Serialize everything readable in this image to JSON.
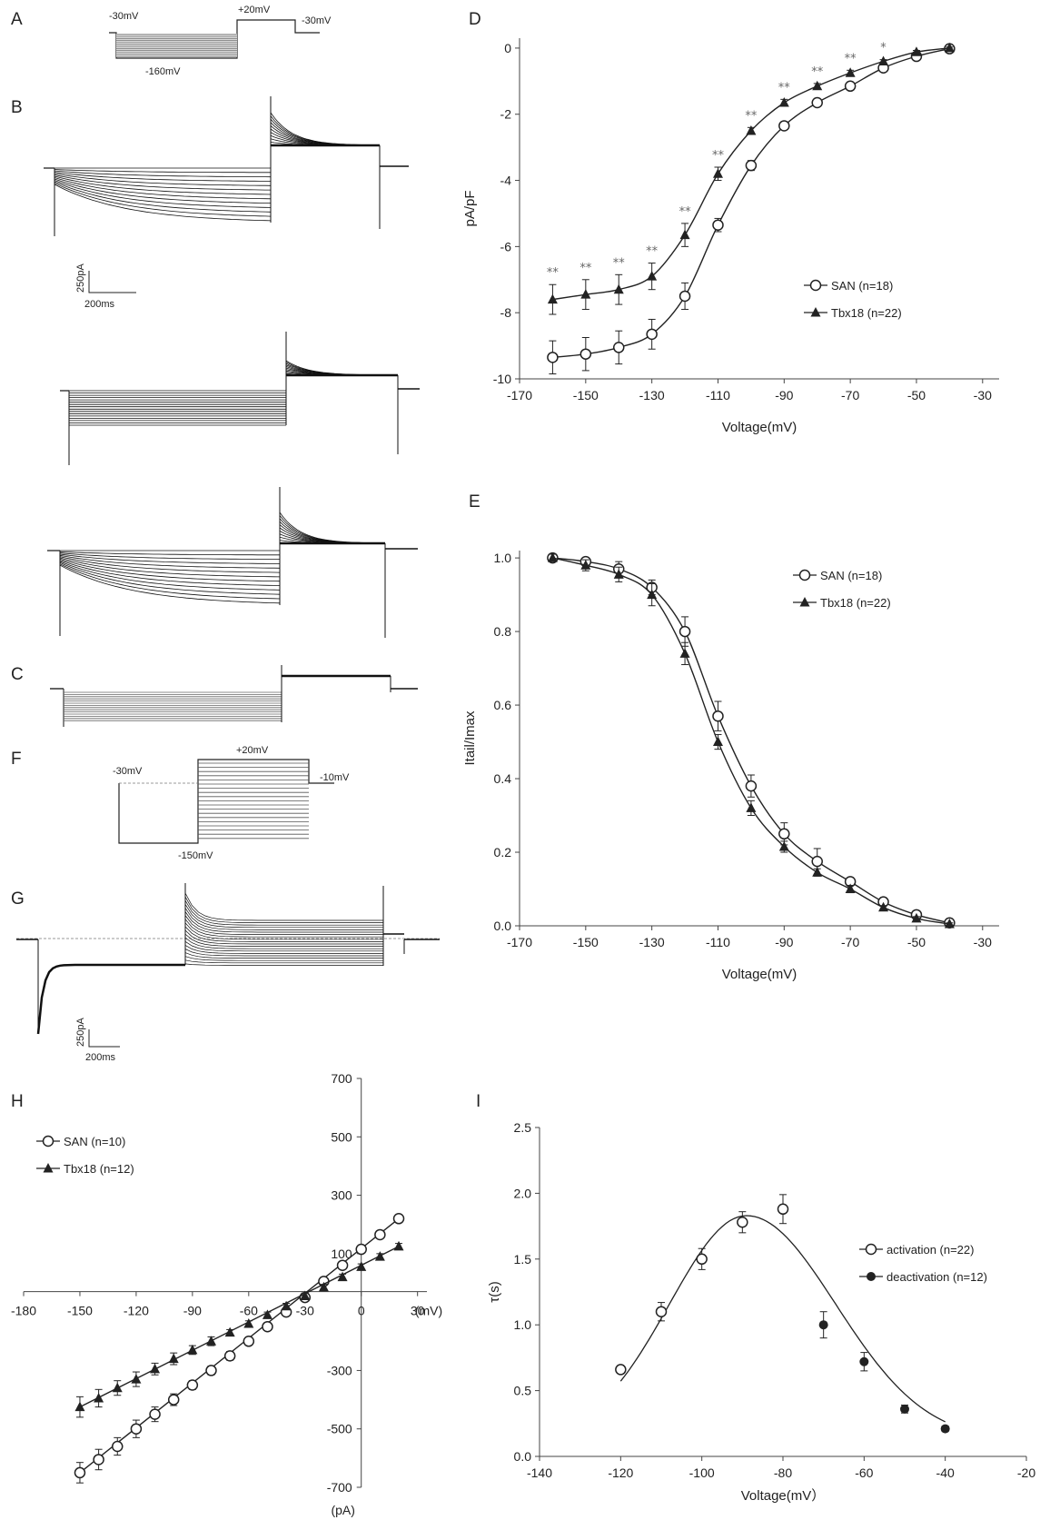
{
  "panel_labels": {
    "A": "A",
    "B": "B",
    "C": "C",
    "D": "D",
    "E": "E",
    "F": "F",
    "G": "G",
    "H": "H",
    "I": "I"
  },
  "protocol_A": {
    "hold": "-30mV",
    "step": "-160mV",
    "tail": "+20mV",
    "return": "-30mV"
  },
  "protocol_F": {
    "hold": "-30mV",
    "pre": "-150mV",
    "step": "+20mV",
    "return": "-10mV"
  },
  "scalebars": {
    "B_current": "250pA",
    "B_time": "200ms",
    "G_current": "250pA",
    "G_time": "200ms"
  },
  "colors": {
    "series_line": "#222222",
    "trace": "#111111",
    "stars": "#666666"
  },
  "chart_data": [
    {
      "id": "D",
      "type": "line",
      "xlabel": "Voltage(mV)",
      "ylabel": "pA/pF",
      "xlim": [
        -170,
        -25
      ],
      "ylim": [
        -10,
        0.3
      ],
      "xticks": [
        -170,
        -150,
        -130,
        -110,
        -90,
        -70,
        -50,
        -30
      ],
      "yticks": [
        0,
        -2,
        -4,
        -6,
        -8,
        -10
      ],
      "legend_position": "right",
      "series": [
        {
          "name": "SAN (n=18)",
          "marker": "open-circle",
          "x": [
            -160,
            -150,
            -140,
            -130,
            -120,
            -110,
            -100,
            -90,
            -80,
            -70,
            -60,
            -50,
            -40
          ],
          "y": [
            -9.35,
            -9.25,
            -9.05,
            -8.65,
            -7.5,
            -5.35,
            -3.55,
            -2.35,
            -1.65,
            -1.15,
            -0.6,
            -0.25,
            -0.02
          ],
          "err": [
            0.5,
            0.5,
            0.5,
            0.45,
            0.4,
            0.2,
            0.15,
            0.1,
            0.08,
            0.08,
            0.05,
            0.05,
            0.03
          ]
        },
        {
          "name": "Tbx18 (n=22)",
          "marker": "filled-triangle",
          "x": [
            -160,
            -150,
            -140,
            -130,
            -120,
            -110,
            -100,
            -90,
            -80,
            -70,
            -60,
            -50,
            -40
          ],
          "y": [
            -7.6,
            -7.45,
            -7.3,
            -6.9,
            -5.65,
            -3.8,
            -2.5,
            -1.65,
            -1.15,
            -0.75,
            -0.4,
            -0.12,
            0
          ],
          "err": [
            0.45,
            0.45,
            0.45,
            0.4,
            0.35,
            0.2,
            0.1,
            0.1,
            0.08,
            0.08,
            0.05,
            0.05,
            0.03
          ]
        }
      ],
      "annotations": [
        {
          "x": -160,
          "text": "**"
        },
        {
          "x": -150,
          "text": "**"
        },
        {
          "x": -140,
          "text": "**"
        },
        {
          "x": -130,
          "text": "**"
        },
        {
          "x": -120,
          "text": "**"
        },
        {
          "x": -110,
          "text": "**"
        },
        {
          "x": -100,
          "text": "**"
        },
        {
          "x": -90,
          "text": "**"
        },
        {
          "x": -80,
          "text": "**"
        },
        {
          "x": -70,
          "text": "**"
        },
        {
          "x": -60,
          "text": "*"
        }
      ]
    },
    {
      "id": "E",
      "type": "line",
      "xlabel": "Voltage(mV)",
      "ylabel": "Itail/Imax",
      "xlim": [
        -170,
        -25
      ],
      "ylim": [
        0,
        1.02
      ],
      "xticks": [
        -170,
        -150,
        -130,
        -110,
        -90,
        -70,
        -50,
        -30
      ],
      "yticks": [
        0.0,
        0.2,
        0.4,
        0.6,
        0.8,
        1.0
      ],
      "legend_position": "top-right",
      "series": [
        {
          "name": "SAN (n=18)",
          "marker": "open-circle",
          "x": [
            -160,
            -150,
            -140,
            -130,
            -120,
            -110,
            -100,
            -90,
            -80,
            -70,
            -60,
            -50,
            -40
          ],
          "y": [
            1.0,
            0.99,
            0.97,
            0.92,
            0.8,
            0.57,
            0.38,
            0.25,
            0.175,
            0.12,
            0.065,
            0.03,
            0.008
          ],
          "err": [
            0.01,
            0.01,
            0.02,
            0.02,
            0.04,
            0.04,
            0.03,
            0.03,
            0.035,
            0.01,
            0.01,
            0.005,
            0.005
          ]
        },
        {
          "name": "Tbx18 (n=22)",
          "marker": "filled-triangle",
          "x": [
            -160,
            -150,
            -140,
            -130,
            -120,
            -110,
            -100,
            -90,
            -80,
            -70,
            -60,
            -50,
            -40
          ],
          "y": [
            1.0,
            0.98,
            0.955,
            0.9,
            0.74,
            0.5,
            0.32,
            0.215,
            0.145,
            0.1,
            0.05,
            0.02,
            0.005
          ],
          "err": [
            0.01,
            0.015,
            0.02,
            0.03,
            0.03,
            0.02,
            0.02,
            0.015,
            0.01,
            0.01,
            0.005,
            0.005,
            0.003
          ]
        }
      ]
    },
    {
      "id": "H",
      "type": "line",
      "xlabel": "(mV)",
      "ylabel": "(pA)",
      "xlim": [
        -180,
        35
      ],
      "ylim": [
        -700,
        700
      ],
      "xticks": [
        -180,
        -150,
        -120,
        -90,
        -60,
        -30,
        0,
        30
      ],
      "yticks": [
        700,
        500,
        300,
        100,
        -300,
        -500,
        -700
      ],
      "legend_position": "top-left",
      "series": [
        {
          "name": "SAN (n=10)",
          "marker": "open-circle",
          "x": [
            -150,
            -140,
            -130,
            -120,
            -110,
            -100,
            -90,
            -80,
            -70,
            -60,
            -50,
            -40,
            -30,
            -20,
            -10,
            0,
            10,
            20
          ],
          "y": [
            -650,
            -605,
            -560,
            -500,
            -450,
            -400,
            -350,
            -300,
            -250,
            -200,
            -150,
            -100,
            -50,
            5,
            60,
            115,
            165,
            220
          ],
          "err": [
            35,
            35,
            30,
            30,
            25,
            20,
            15,
            15,
            15,
            10,
            10,
            10,
            10,
            10,
            10,
            10,
            10,
            10
          ]
        },
        {
          "name": "Tbx18 (n=12)",
          "marker": "filled-triangle",
          "x": [
            -150,
            -140,
            -130,
            -120,
            -110,
            -100,
            -90,
            -80,
            -70,
            -60,
            -50,
            -40,
            -30,
            -20,
            -10,
            0,
            10,
            20
          ],
          "y": [
            -425,
            -395,
            -360,
            -330,
            -295,
            -260,
            -230,
            -200,
            -170,
            -140,
            -110,
            -80,
            -45,
            -15,
            20,
            55,
            90,
            125
          ],
          "err": [
            35,
            30,
            25,
            25,
            20,
            20,
            15,
            15,
            10,
            10,
            10,
            10,
            10,
            10,
            10,
            10,
            10,
            10
          ]
        }
      ]
    },
    {
      "id": "I",
      "type": "scatter",
      "xlabel": "Voltage(mV）",
      "ylabel": "τ(s)",
      "xlim": [
        -140,
        -20
      ],
      "ylim": [
        0,
        2.5
      ],
      "xticks": [
        -140,
        -120,
        -100,
        -80,
        -60,
        -40,
        -20
      ],
      "yticks": [
        0.0,
        0.5,
        1.0,
        1.5,
        2.0,
        2.5
      ],
      "legend_position": "right",
      "series": [
        {
          "name": "activation (n=22)",
          "marker": "open-circle",
          "x": [
            -120,
            -110,
            -100,
            -90,
            -80
          ],
          "y": [
            0.66,
            1.1,
            1.5,
            1.78,
            1.88
          ],
          "err": [
            0.02,
            0.07,
            0.08,
            0.08,
            0.11
          ]
        },
        {
          "name": "deactivation (n=12)",
          "marker": "filled-circle",
          "x": [
            -70,
            -60,
            -50,
            -40
          ],
          "y": [
            1.0,
            0.72,
            0.36,
            0.21
          ],
          "err": [
            0.1,
            0.07,
            0.03,
            0.02
          ]
        }
      ],
      "fit": {
        "peak_x": -89,
        "peak_y": 1.83
      }
    }
  ]
}
